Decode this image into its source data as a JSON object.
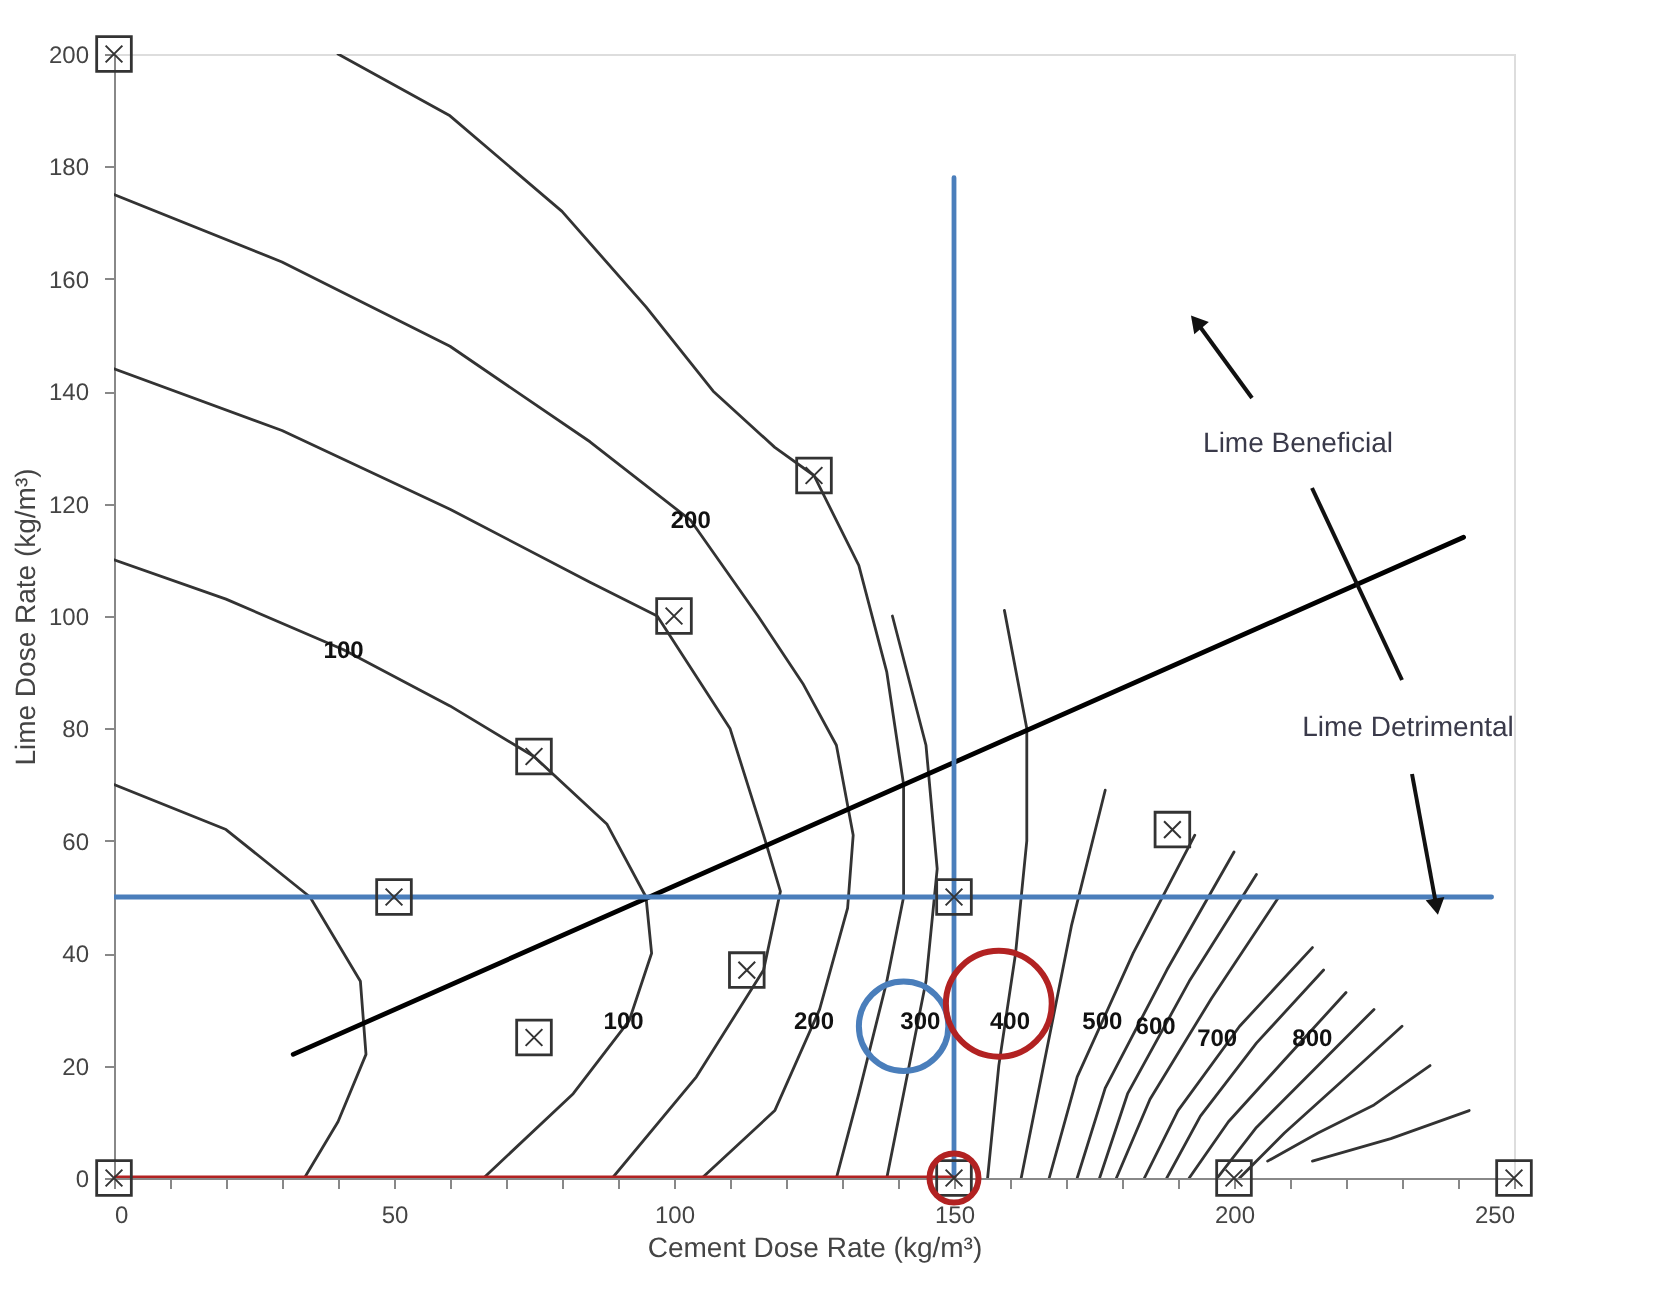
{
  "chart_data": {
    "type": "line",
    "xlabel": "Cement Dose Rate (kg/m³)",
    "ylabel": "Lime Dose Rate (kg/m³)",
    "xlim": [
      0,
      250
    ],
    "ylim": [
      0,
      200
    ],
    "xticks": [
      0,
      {
        "value": 10,
        "label": null
      },
      {
        "value": 20,
        "label": null
      },
      {
        "value": 30,
        "label": null
      },
      {
        "value": 40,
        "label": null
      },
      50,
      {
        "value": 60,
        "label": null
      },
      {
        "value": 70,
        "label": null
      },
      {
        "value": 80,
        "label": null
      },
      {
        "value": 90,
        "label": null
      },
      100,
      {
        "value": 110,
        "label": null
      },
      {
        "value": 120,
        "label": null
      },
      {
        "value": 130,
        "label": null
      },
      {
        "value": 140,
        "label": null
      },
      150,
      {
        "value": 160,
        "label": null
      },
      {
        "value": 170,
        "label": null
      },
      {
        "value": 180,
        "label": null
      },
      {
        "value": 190,
        "label": null
      },
      200,
      {
        "value": 210,
        "label": null
      },
      {
        "value": 220,
        "label": null
      },
      {
        "value": 230,
        "label": null
      },
      {
        "value": 240,
        "label": null
      },
      250
    ],
    "yticks": [
      0,
      20,
      40,
      60,
      80,
      100,
      120,
      140,
      160,
      180,
      200
    ],
    "line_style": "solid",
    "series": [
      {
        "color": "#333333",
        "x": [
          0,
          20,
          35,
          44,
          45,
          40,
          34
        ],
        "values": [
          70,
          62,
          50,
          35,
          22,
          10,
          0
        ]
      },
      {
        "color": "#333333",
        "x": [
          0,
          20,
          41,
          60,
          75,
          88,
          95,
          96,
          92,
          82,
          66
        ],
        "values": [
          110,
          103,
          94,
          84,
          75,
          63,
          50,
          40,
          28,
          15,
          0
        ]
      },
      {
        "color": "#333333",
        "x": [
          0,
          30,
          60,
          85,
          97,
          110,
          116,
          119,
          116,
          104,
          89
        ],
        "values": [
          144,
          133,
          119,
          106,
          100,
          80,
          61,
          51,
          37,
          18,
          0
        ]
      },
      {
        "color": "#333333",
        "x": [
          0,
          30,
          60,
          85,
          103,
          115,
          123,
          129,
          132,
          131,
          126,
          118,
          105
        ],
        "values": [
          175,
          163,
          148,
          131,
          117,
          100,
          88,
          77,
          61,
          48,
          30,
          12,
          0
        ]
      },
      {
        "color": "#333333",
        "x": [
          40,
          60,
          80,
          95,
          107,
          118,
          125,
          133,
          138,
          141,
          141,
          138,
          133,
          129
        ],
        "values": [
          200,
          189,
          172,
          155,
          140,
          130,
          125,
          109,
          90,
          70,
          50,
          35,
          15,
          0
        ]
      },
      {
        "color": "#333333",
        "x": [
          139,
          145,
          147,
          145,
          142,
          138
        ],
        "values": [
          100,
          77,
          55,
          35,
          20,
          0
        ]
      },
      {
        "color": "#333333",
        "x": [
          159,
          163,
          163,
          161,
          158,
          156
        ],
        "values": [
          101,
          80,
          60,
          40,
          20,
          0
        ]
      },
      {
        "color": "#333333",
        "x": [
          162,
          166,
          171,
          177
        ],
        "values": [
          0,
          20,
          45,
          69
        ]
      },
      {
        "color": "#333333",
        "x": [
          167,
          172,
          182,
          193
        ],
        "values": [
          0,
          18,
          40,
          61
        ]
      },
      {
        "color": "#333333",
        "x": [
          172,
          177,
          188,
          200
        ],
        "values": [
          0,
          16,
          37,
          58
        ]
      },
      {
        "color": "#333333",
        "x": [
          176,
          181,
          192,
          204
        ],
        "values": [
          0,
          15,
          35,
          54
        ]
      },
      {
        "color": "#333333",
        "x": [
          179,
          185,
          196,
          208
        ],
        "values": [
          0,
          14,
          32,
          50
        ]
      },
      {
        "color": "#333333",
        "x": [
          184,
          190,
          201,
          214
        ],
        "values": [
          0,
          12,
          27,
          41
        ]
      },
      {
        "color": "#333333",
        "x": [
          188,
          194,
          204,
          216
        ],
        "values": [
          0,
          11,
          24,
          37
        ]
      },
      {
        "color": "#333333",
        "x": [
          192,
          199,
          209,
          220
        ],
        "values": [
          0,
          10,
          21,
          33
        ]
      },
      {
        "color": "#333333",
        "x": [
          197,
          204,
          214,
          225
        ],
        "values": [
          0,
          9,
          19,
          30
        ]
      },
      {
        "color": "#333333",
        "x": [
          201,
          209,
          219,
          230
        ],
        "values": [
          0,
          8,
          17,
          27
        ]
      },
      {
        "color": "#333333",
        "x": [
          206,
          215,
          225,
          235
        ],
        "values": [
          3,
          8,
          13,
          20
        ]
      },
      {
        "color": "#333333",
        "x": [
          214,
          228,
          242
        ],
        "values": [
          3,
          7,
          12
        ]
      },
      {
        "color": "#000000",
        "x": [
          32,
          241
        ],
        "values": [
          22,
          114
        ]
      },
      {
        "color": "#4a7ebb",
        "x": [
          0,
          246
        ],
        "values": [
          50,
          50
        ]
      },
      {
        "color": "#4a7ebb",
        "x": [
          150,
          150
        ],
        "values": [
          0,
          178
        ]
      },
      {
        "color": "#b22222",
        "x": [
          0,
          150
        ],
        "values": [
          0,
          0
        ]
      },
      {
        "type": "scatter",
        "marker": "square",
        "color": "#333333",
        "x": [
          0,
          0,
          50,
          75,
          75,
          100,
          113,
          125,
          150,
          189,
          150,
          200,
          250
        ],
        "values": [
          0,
          200,
          50,
          75,
          25,
          100,
          37,
          125,
          50,
          62,
          0,
          0,
          0
        ]
      },
      {
        "type": "scatter",
        "marker": "circle",
        "color": "#4a7ebb",
        "x": [
          141
        ],
        "values": [
          27
        ]
      },
      {
        "type": "scatter",
        "marker": "circle",
        "color": "#b22222",
        "x": [
          158,
          150
        ],
        "values": [
          31,
          0
        ]
      }
    ],
    "annotations": [
      {
        "text": "100",
        "x": 41,
        "y": 94
      },
      {
        "text": "100",
        "x": 91,
        "y": 28
      },
      {
        "text": "200",
        "x": 103,
        "y": 117
      },
      {
        "text": "200",
        "x": 125,
        "y": 28
      },
      {
        "text": "300",
        "x": 144,
        "y": 28
      },
      {
        "text": "400",
        "x": 160,
        "y": 28
      },
      {
        "text": "500",
        "x": 176.5,
        "y": 28
      },
      {
        "text": "600",
        "x": 186,
        "y": 27
      },
      {
        "text": "700",
        "x": 197,
        "y": 25
      },
      {
        "text": "800",
        "x": 214,
        "y": 25
      },
      "Lime Beneficial",
      "Lime Detrimental"
    ]
  }
}
